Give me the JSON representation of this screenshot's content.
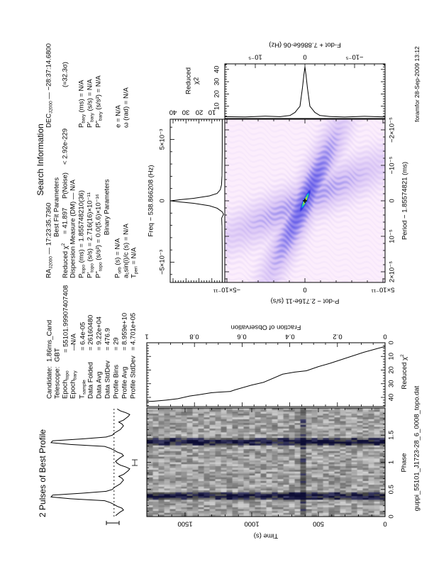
{
  "profile_panel": {
    "title": "2 Pulses of Best Profile"
  },
  "candidate": [
    {
      "label": "Candidate:",
      "sub": "",
      "sep": "",
      "value": "1.86ms_Cand"
    },
    {
      "label": "Telescope:",
      "sub": "",
      "sep": "",
      "value": "GBT"
    },
    {
      "label": "Epoch",
      "sub": "topo",
      "sep": "=",
      "value": "55101.99907407408"
    },
    {
      "label": "Epoch",
      "sub": "bary",
      "sep": "—",
      "value": "N/A"
    },
    {
      "label": "T",
      "sub": "sample",
      "sep": "=",
      "value": "6.4e-05"
    },
    {
      "label": "Data Folded",
      "sub": "",
      "sep": "=",
      "value": "26160480"
    },
    {
      "label": "Data Avg",
      "sub": "",
      "sep": "=",
      "value": "9.22e+04"
    },
    {
      "label": "Data StdDev",
      "sub": "",
      "sep": "=",
      "value": "476.9"
    },
    {
      "label": "Profile Bins",
      "sub": "",
      "sep": "=",
      "value": "29"
    },
    {
      "label": "Profile Avg",
      "sub": "",
      "sep": "=",
      "value": "8.959e+10"
    },
    {
      "label": "Profile StdDev",
      "sub": "",
      "sep": "=",
      "value": "4.701e+05"
    }
  ],
  "search": {
    "title": "Search Information",
    "ra": {
      "label": "RA",
      "sub": "J2000",
      "sep": "—",
      "value": "17:23:35.7360"
    },
    "dec": {
      "label": "DEC",
      "sub": "J2000",
      "sep": "—",
      "value": "−28:37:14.6800"
    },
    "best_fit_title": "Best Fit Parameters",
    "reduced_chi2": {
      "label": "Reduced χ",
      "sup": "2",
      "sep": "=",
      "value": "41.897",
      "pnoise_label": "P(Noise)",
      "pnoise_value": "< 2.92e-229",
      "sigma": "(≈32.3σ)"
    },
    "dm": {
      "label": "Dispersion Measure (DM)",
      "sep": "—",
      "value": "N/A"
    },
    "topo": [
      {
        "label": "P",
        "sub": "topo",
        "unit": "(ms)",
        "sep": "=",
        "value": "1.855748210(36)"
      },
      {
        "label": "P'",
        "sub": "topo",
        "unit": "(s/s)",
        "sep": "=",
        "value": "2.716(16)×10⁻¹¹"
      },
      {
        "label": "P''",
        "sub": "topo",
        "unit": "(s/s²)",
        "sep": "=",
        "value": "0.0(5.6)×10⁻¹⁶"
      }
    ],
    "bary": [
      {
        "label": "P",
        "sub": "bary",
        "unit": "(ms)",
        "sep": "=",
        "value": "N/A"
      },
      {
        "label": "P'",
        "sub": "bary",
        "unit": "(s/s)",
        "sep": "=",
        "value": "N/A"
      },
      {
        "label": "P''",
        "sub": "bary",
        "unit": "(s/s²)",
        "sep": "=",
        "value": "N/A"
      }
    ],
    "binary_title": "Binary Parameters",
    "binary_left": [
      {
        "label": "P",
        "sub": "orb",
        "unit": "(s)",
        "sep": "=",
        "value": "N/A"
      },
      {
        "label": "a₁sin(i)/c",
        "sub": "",
        "unit": "(s)",
        "sep": "=",
        "value": "N/A"
      },
      {
        "label": "T",
        "sub": "peri",
        "unit": "",
        "sep": "=",
        "value": "N/A"
      }
    ],
    "binary_right": [
      {
        "label": "e",
        "unit": "",
        "sep": "=",
        "value": "N/A"
      },
      {
        "label": "ω",
        "unit": "(rad)",
        "sep": "=",
        "value": "N/A"
      }
    ]
  },
  "footer": {
    "filename": "guppi_55101_J1723-28_6_0008_topo.dat",
    "stamp": "foramfor 28-Sep-2009 13:12"
  },
  "chart_data": [
    {
      "id": "profile",
      "type": "line",
      "title": "2 Pulses of Best Profile",
      "xlabel": "Phase",
      "xlim": [
        0,
        2
      ],
      "bins": 29,
      "values": [
        0.18,
        0.15,
        0.12,
        0.08,
        0.1,
        0.16,
        0.2,
        0.25,
        0.32,
        0.75,
        1.0,
        0.98,
        0.6,
        0.3,
        0.22,
        0.2,
        0.16,
        0.12,
        0.1,
        0.08,
        0.1,
        0.14,
        0.08,
        0.05,
        0.02,
        0.0,
        0.05,
        0.12,
        0.16
      ],
      "mean_level": 0.2
    },
    {
      "id": "time_phase",
      "type": "heatmap",
      "xlabel": "Phase",
      "ylabel": "Time (s)",
      "xlim": [
        0,
        2
      ],
      "ylim": [
        0,
        1787
      ],
      "xticks": [
        {
          "v": 0,
          "label": "0"
        },
        {
          "v": 0.5,
          "label": "0.5"
        },
        {
          "v": 1,
          "label": "1"
        },
        {
          "v": 1.5,
          "label": "1.5"
        }
      ],
      "yticks": [
        {
          "v": 0,
          "label": "0"
        },
        {
          "v": 500,
          "label": "500"
        },
        {
          "v": 1000,
          "label": "1000"
        },
        {
          "v": 1500,
          "label": "1500"
        }
      ],
      "colormap": "grayscale"
    },
    {
      "id": "chi2_vs_time",
      "type": "line",
      "xlabel": "Reduced χ",
      "xlabel_sup": "2",
      "ylabel": "Fraction of Observation",
      "xlim": [
        46.8,
        0
      ],
      "ylim": [
        0,
        1
      ],
      "xticks": [
        {
          "v": 0,
          "label": "0"
        },
        {
          "v": 10,
          "label": "10"
        },
        {
          "v": 20,
          "label": "20"
        },
        {
          "v": 30,
          "label": "30"
        },
        {
          "v": 40,
          "label": "40"
        }
      ],
      "yticks": [
        {
          "v": 0,
          "label": "0"
        },
        {
          "v": 0.2,
          "label": "0.2"
        },
        {
          "v": 0.4,
          "label": "0.4"
        },
        {
          "v": 0.6,
          "label": "0.6"
        },
        {
          "v": 0.8,
          "label": "0.8"
        },
        {
          "v": 1,
          "label": "1"
        }
      ],
      "fraction": [
        0,
        0.09,
        0.16,
        0.23,
        0.28,
        0.33,
        0.38,
        0.43,
        0.47,
        0.51,
        0.56,
        0.6,
        0.63,
        0.65,
        0.7,
        0.73,
        0.78,
        0.82,
        0.87,
        0.92,
        0.97,
        1.0
      ],
      "chi2": [
        2.7,
        7,
        11,
        15,
        17.5,
        20.5,
        21.5,
        23,
        26,
        29,
        31,
        33,
        34.5,
        35.7,
        36.2,
        36.6,
        38,
        39,
        41,
        42,
        42.8,
        43
      ]
    },
    {
      "id": "chi2_vs_freq",
      "type": "line",
      "xlabel": "Freq − 538.866208 (Hz)",
      "ylabel": "Reduced χ2",
      "xlim": [
        -0.00665,
        0.00665
      ],
      "ylim": [
        0,
        42.2
      ],
      "xticks": [
        {
          "v": -0.005,
          "label": "−5×10⁻³"
        },
        {
          "v": 0,
          "label": "0"
        },
        {
          "v": 0.005,
          "label": "5×10⁻³"
        }
      ],
      "yticks": [
        {
          "v": 10,
          "label": "10"
        },
        {
          "v": 20,
          "label": "20"
        },
        {
          "v": 30,
          "label": "30"
        },
        {
          "v": 40,
          "label": "40"
        }
      ],
      "freq_offset": [
        -0.00665,
        -0.004,
        -0.002,
        -0.0014,
        -0.0011,
        -0.0009,
        -0.0006,
        -0.0004,
        -0.0002,
        -0.0001,
        0,
        0.0001,
        0.0002,
        0.0004,
        0.0006,
        0.0009,
        0.0013,
        0.002,
        0.004,
        0.00665
      ],
      "chi2": [
        2,
        2,
        2.2,
        2.4,
        1,
        2,
        6,
        12,
        24,
        34,
        42,
        34,
        24,
        12,
        6,
        3.5,
        2.5,
        2.2,
        2,
        2
      ]
    },
    {
      "id": "p_pdot_plane",
      "type": "heatmap",
      "xlabel": "Period − 1.85574821 (ms)",
      "ylabel": "P-dot − 2.716e-11 (s/s)",
      "xlim": [
        2.3e-05,
        -2.3e-05
      ],
      "ylim": [
        -5.14e-11,
        5.14e-11
      ],
      "xticks": [
        {
          "v": 2e-05,
          "label": "2×10⁻⁵"
        },
        {
          "v": 1e-05,
          "label": "10⁻⁵"
        },
        {
          "v": 0,
          "label": "0"
        },
        {
          "v": -1e-05,
          "label": "−10⁻⁵"
        },
        {
          "v": -2e-05,
          "label": "−2×10⁻⁵"
        }
      ],
      "yticks": [
        {
          "v": -5e-11,
          "label": "−5×10⁻¹¹"
        },
        {
          "v": 0,
          "label": "0"
        },
        {
          "v": 5e-11,
          "label": "5×10⁻¹¹"
        }
      ],
      "peak": {
        "period": 0,
        "pdot": 0
      },
      "colormap": "pink-blue-green-yellow"
    },
    {
      "id": "chi2_vs_fdot",
      "type": "line",
      "xlabel": "Reduced χ2",
      "ylabel": "F-dot + 7.8866e-06 (Hz)",
      "xlim": [
        0,
        44.5
      ],
      "ylim": [
        -1.61e-05,
        1.61e-05
      ],
      "xticks": [
        {
          "v": 10,
          "label": "10"
        },
        {
          "v": 20,
          "label": "20"
        },
        {
          "v": 30,
          "label": "30"
        },
        {
          "v": 40,
          "label": "40"
        }
      ],
      "yticks": [
        {
          "v": 1e-05,
          "label": "10⁻⁵"
        },
        {
          "v": 0,
          "label": "0"
        },
        {
          "v": -1e-05,
          "label": "−10⁻⁵"
        }
      ],
      "fdot": [
        -1.61e-05,
        -1.2e-05,
        -8e-06,
        -5e-06,
        -3e-06,
        -2e-06,
        -1e-06,
        -5e-07,
        -2e-07,
        0,
        2e-07,
        5e-07,
        1e-06,
        2e-06,
        3e-06,
        5e-06,
        8e-06,
        1.2e-05,
        1.61e-05
      ],
      "chi2": [
        1.3,
        1.8,
        1.2,
        1.6,
        2.5,
        5,
        10,
        25,
        36,
        42,
        36,
        25,
        10,
        5,
        2.5,
        1.5,
        1.9,
        1.3,
        1.5
      ]
    }
  ]
}
